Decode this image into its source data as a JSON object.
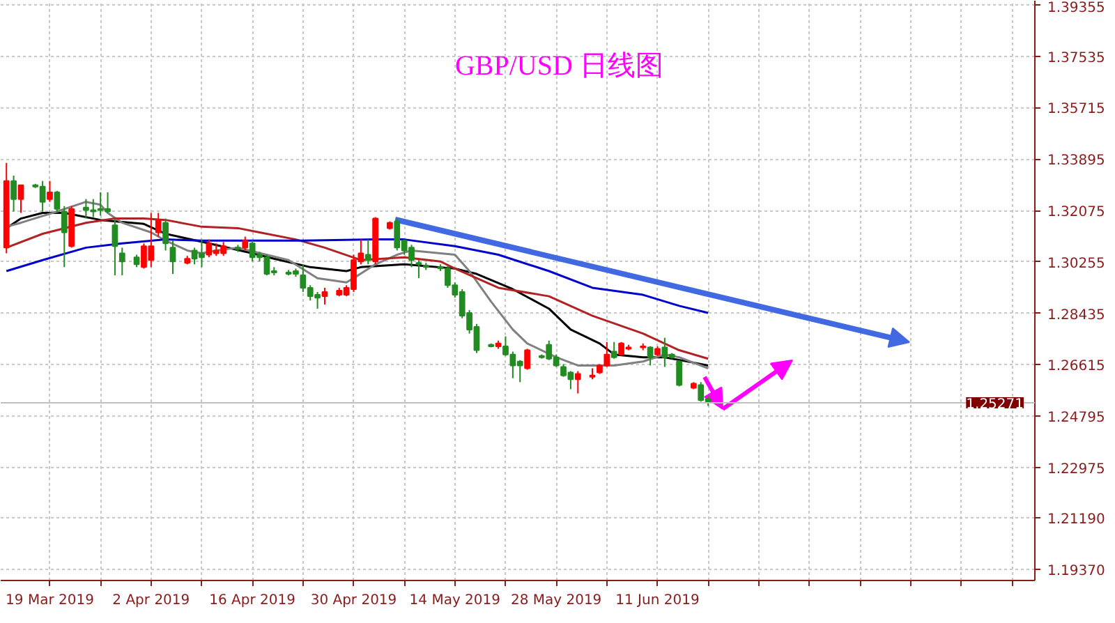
{
  "chart_data": {
    "type": "candlestick",
    "title": "GBP/USD 日线图",
    "x": [
      "2019-03-13",
      "2019-03-14",
      "2019-03-15",
      "2019-03-17",
      "2019-03-18",
      "2019-03-19",
      "2019-03-20",
      "2019-03-21",
      "2019-03-22",
      "2019-03-24",
      "2019-03-25",
      "2019-03-26",
      "2019-03-27",
      "2019-03-28",
      "2019-03-29",
      "2019-03-31",
      "2019-04-01",
      "2019-04-02",
      "2019-04-03",
      "2019-04-04",
      "2019-04-05",
      "2019-04-07",
      "2019-04-08",
      "2019-04-09",
      "2019-04-10",
      "2019-04-11",
      "2019-04-12",
      "2019-04-14",
      "2019-04-15",
      "2019-04-16",
      "2019-04-17",
      "2019-04-18",
      "2019-04-19",
      "2019-04-21",
      "2019-04-22",
      "2019-04-23",
      "2019-04-24",
      "2019-04-25",
      "2019-04-26",
      "2019-04-28",
      "2019-04-29",
      "2019-04-30",
      "2019-05-01",
      "2019-05-02",
      "2019-05-03",
      "2019-05-05",
      "2019-05-06",
      "2019-05-07",
      "2019-05-08",
      "2019-05-09",
      "2019-05-10",
      "2019-05-12",
      "2019-05-13",
      "2019-05-14",
      "2019-05-15",
      "2019-05-16",
      "2019-05-17",
      "2019-05-19",
      "2019-05-20",
      "2019-05-21",
      "2019-05-22",
      "2019-05-23",
      "2019-05-24",
      "2019-05-26",
      "2019-05-27",
      "2019-05-28",
      "2019-05-29",
      "2019-05-30",
      "2019-05-31",
      "2019-06-02",
      "2019-06-03",
      "2019-06-04",
      "2019-06-05",
      "2019-06-06",
      "2019-06-07",
      "2019-06-09",
      "2019-06-10",
      "2019-06-11",
      "2019-06-12",
      "2019-06-13",
      "2019-06-14",
      "2019-06-16",
      "2019-06-17",
      "2019-06-18"
    ],
    "ohlc": [
      [
        1.3076,
        1.3376,
        1.3056,
        1.3312
      ],
      [
        1.3312,
        1.3331,
        1.3204,
        1.3248
      ],
      [
        1.3248,
        1.3297,
        1.3199,
        1.3297
      ],
      [
        1.3297,
        1.3302,
        1.3287,
        1.3292
      ],
      [
        1.3292,
        1.3312,
        1.3204,
        1.3238
      ],
      [
        1.3248,
        1.3312,
        1.3238,
        1.3272
      ],
      [
        1.3272,
        1.3277,
        1.3199,
        1.3213
      ],
      [
        1.3204,
        1.3223,
        1.3007,
        1.313
      ],
      [
        1.3081,
        1.3223,
        1.3076,
        1.3213
      ],
      [
        1.3218,
        1.3248,
        1.3179,
        1.3209
      ],
      [
        1.3209,
        1.3248,
        1.3184,
        1.3204
      ],
      [
        1.3213,
        1.3272,
        1.3189,
        1.3209
      ],
      [
        1.3213,
        1.3272,
        1.3199,
        1.3204
      ],
      [
        1.3155,
        1.3179,
        1.2978,
        1.3081
      ],
      [
        1.3056,
        1.3076,
        1.2978,
        1.3027
      ],
      [
        1.3042,
        1.3051,
        1.3007,
        1.3017
      ],
      [
        1.3007,
        1.3091,
        1.3002,
        1.3081
      ],
      [
        1.3032,
        1.3199,
        1.3007,
        1.3081
      ],
      [
        1.313,
        1.3199,
        1.3115,
        1.3174
      ],
      [
        1.3164,
        1.3179,
        1.3066,
        1.3091
      ],
      [
        1.3076,
        1.3101,
        1.2983,
        1.3027
      ],
      [
        1.3022,
        1.3047,
        1.3017,
        1.3037
      ],
      [
        1.3066,
        1.3076,
        1.3017,
        1.3037
      ],
      [
        1.3056,
        1.3105,
        1.3007,
        1.3042
      ],
      [
        1.3051,
        1.3105,
        1.3042,
        1.3091
      ],
      [
        1.3056,
        1.3091,
        1.3047,
        1.3066
      ],
      [
        1.3056,
        1.3096,
        1.3047,
        1.3081
      ],
      [
        1.3076,
        1.3086,
        1.3061,
        1.3071
      ],
      [
        1.3076,
        1.3115,
        1.3066,
        1.3101
      ],
      [
        1.3091,
        1.3101,
        1.3027,
        1.3042
      ],
      [
        1.3051,
        1.3061,
        1.3027,
        1.3042
      ],
      [
        1.3042,
        1.3051,
        1.2978,
        1.2983
      ],
      [
        1.2993,
        1.3007,
        1.2978,
        1.2988
      ],
      [
        1.2988,
        1.2997,
        1.2978,
        1.2983
      ],
      [
        1.2993,
        1.3002,
        1.2973,
        1.2983
      ],
      [
        1.2978,
        1.3017,
        1.2919,
        1.2934
      ],
      [
        1.2934,
        1.2943,
        1.2889,
        1.2904
      ],
      [
        1.2909,
        1.2919,
        1.286,
        1.2899
      ],
      [
        1.2904,
        1.2934,
        1.2875,
        1.2919
      ],
      [
        1.2909,
        1.2934,
        1.2904,
        1.2924
      ],
      [
        1.2909,
        1.2943,
        1.2904,
        1.2934
      ],
      [
        1.2929,
        1.3051,
        1.2919,
        1.3032
      ],
      [
        1.3027,
        1.3105,
        1.3017,
        1.3056
      ],
      [
        1.3051,
        1.3105,
        1.3017,
        1.3032
      ],
      [
        1.3027,
        1.3184,
        1.3017,
        1.3179
      ],
      [
        1.3145,
        1.3169,
        1.314,
        1.3164
      ],
      [
        1.3169,
        1.3179,
        1.3066,
        1.3076
      ],
      [
        1.3101,
        1.3105,
        1.3051,
        1.3066
      ],
      [
        1.3076,
        1.3086,
        1.3007,
        1.3032
      ],
      [
        1.3022,
        1.3032,
        1.2968,
        1.3017
      ],
      [
        1.3012,
        1.3022,
        1.2997,
        1.3007
      ],
      [
        1.3007,
        1.3017,
        1.2993,
        1.3002
      ],
      [
        1.3002,
        1.3012,
        1.2934,
        1.2943
      ],
      [
        1.2943,
        1.2953,
        1.2899,
        1.2909
      ],
      [
        1.2919,
        1.2929,
        1.2826,
        1.2835
      ],
      [
        1.2845,
        1.2855,
        1.2772,
        1.2786
      ],
      [
        1.2796,
        1.2806,
        1.2703,
        1.2713
      ],
      [
        1.2732,
        1.2737,
        1.2723,
        1.2727
      ],
      [
        1.2727,
        1.2747,
        1.2718,
        1.2737
      ],
      [
        1.2727,
        1.2762,
        1.2693,
        1.2698
      ],
      [
        1.2698,
        1.2708,
        1.2614,
        1.2659
      ],
      [
        1.2673,
        1.2678,
        1.26,
        1.2659
      ],
      [
        1.2649,
        1.2718,
        1.2644,
        1.2713
      ],
      [
        1.2693,
        1.2698,
        1.2683,
        1.2688
      ],
      [
        1.2732,
        1.2747,
        1.2678,
        1.2683
      ],
      [
        1.2688,
        1.2698,
        1.2654,
        1.2659
      ],
      [
        1.2654,
        1.2664,
        1.2619,
        1.2624
      ],
      [
        1.2634,
        1.2639,
        1.2575,
        1.261
      ],
      [
        1.261,
        1.2639,
        1.256,
        1.2629
      ],
      [
        1.2619,
        1.2649,
        1.261,
        1.2624
      ],
      [
        1.2634,
        1.2664,
        1.2629,
        1.2659
      ],
      [
        1.2659,
        1.2742,
        1.2654,
        1.2698
      ],
      [
        1.2708,
        1.2742,
        1.2683,
        1.2688
      ],
      [
        1.2698,
        1.2742,
        1.2693,
        1.2737
      ],
      [
        1.2718,
        1.2732,
        1.2713,
        1.2723
      ],
      [
        1.2723,
        1.2737,
        1.2713,
        1.2727
      ],
      [
        1.2723,
        1.2727,
        1.2659,
        1.2688
      ],
      [
        1.2698,
        1.2727,
        1.2693,
        1.2718
      ],
      [
        1.2723,
        1.2757,
        1.2654,
        1.2688
      ],
      [
        1.2698,
        1.2703,
        1.2683,
        1.2688
      ],
      [
        1.2673,
        1.2678,
        1.2585,
        1.259
      ],
      [
        1.258,
        1.26,
        1.2575,
        1.2595
      ],
      [
        1.259,
        1.26,
        1.2531,
        1.2536
      ],
      [
        1.2541,
        1.2551,
        1.2516,
        1.2527
      ]
    ],
    "colors": [
      "#ff0000",
      "#228b22",
      "#ff0000",
      "#228b22",
      "#228b22",
      "#ff0000",
      "#228b22",
      "#228b22",
      "#ff0000",
      "#228b22",
      "#228b22",
      "#228b22",
      "#228b22",
      "#228b22",
      "#228b22",
      "#228b22",
      "#ff0000",
      "#ff0000",
      "#ff0000",
      "#228b22",
      "#228b22",
      "#ff0000",
      "#228b22",
      "#228b22",
      "#ff0000",
      "#ff0000",
      "#ff0000",
      "#228b22",
      "#ff0000",
      "#228b22",
      "#228b22",
      "#228b22",
      "#228b22",
      "#228b22",
      "#228b22",
      "#228b22",
      "#228b22",
      "#228b22",
      "#ff0000",
      "#ff0000",
      "#ff0000",
      "#ff0000",
      "#ff0000",
      "#228b22",
      "#ff0000",
      "#ff0000",
      "#228b22",
      "#228b22",
      "#228b22",
      "#228b22",
      "#228b22",
      "#228b22",
      "#228b22",
      "#228b22",
      "#228b22",
      "#228b22",
      "#228b22",
      "#228b22",
      "#ff0000",
      "#228b22",
      "#228b22",
      "#228b22",
      "#ff0000",
      "#228b22",
      "#228b22",
      "#228b22",
      "#228b22",
      "#228b22",
      "#ff0000",
      "#ff0000",
      "#ff0000",
      "#ff0000",
      "#228b22",
      "#ff0000",
      "#ff0000",
      "#ff0000",
      "#228b22",
      "#ff0000",
      "#228b22",
      "#228b22",
      "#228b22",
      "#ff0000",
      "#228b22",
      "#228b22"
    ],
    "series": [
      {
        "type": "line",
        "color": "#000000",
        "x": [
          "2019-03-13",
          "2019-03-15",
          "2019-03-18",
          "2019-03-21",
          "2019-03-26",
          "2019-04-01",
          "2019-04-04",
          "2019-04-10",
          "2019-04-16",
          "2019-04-19",
          "2019-04-24",
          "2019-04-29",
          "2019-05-01",
          "2019-05-07",
          "2019-05-14",
          "2019-05-17",
          "2019-05-22",
          "2019-05-27",
          "2019-05-30",
          "2019-06-03",
          "2019-06-05",
          "2019-06-09",
          "2019-06-12",
          "2019-06-16",
          "2019-06-18"
        ],
        "values": [
          1.3145,
          1.3179,
          1.3199,
          1.3199,
          1.3174,
          1.316,
          1.3125,
          1.3091,
          1.3056,
          1.3037,
          1.3007,
          1.2993,
          1.3007,
          1.3017,
          1.3002,
          1.2983,
          1.2929,
          1.286,
          1.2786,
          1.2737,
          1.2698,
          1.2688,
          1.2688,
          1.2669,
          1.2659
        ]
      },
      {
        "type": "line",
        "color": "#808080",
        "x": [
          "2019-03-13",
          "2019-03-15",
          "2019-03-20",
          "2019-03-24",
          "2019-03-26",
          "2019-03-27",
          "2019-03-29",
          "2019-04-02",
          "2019-04-04",
          "2019-04-07",
          "2019-04-09",
          "2019-04-11",
          "2019-04-14",
          "2019-04-21",
          "2019-04-25",
          "2019-04-29",
          "2019-04-30",
          "2019-05-03",
          "2019-05-06",
          "2019-05-08",
          "2019-05-10",
          "2019-05-14",
          "2019-05-16",
          "2019-05-19",
          "2019-05-22",
          "2019-05-24",
          "2019-05-28",
          "2019-05-31",
          "2019-06-05",
          "2019-06-09",
          "2019-06-12",
          "2019-06-14",
          "2019-06-18"
        ],
        "values": [
          1.315,
          1.3164,
          1.3204,
          1.3238,
          1.3228,
          1.3199,
          1.3164,
          1.313,
          1.3101,
          1.3066,
          1.3056,
          1.3066,
          1.3076,
          1.3032,
          1.2968,
          1.2953,
          1.2968,
          1.3017,
          1.3051,
          1.3066,
          1.3061,
          1.3051,
          1.2993,
          1.2885,
          1.2786,
          1.2737,
          1.2688,
          1.2659,
          1.2659,
          1.2673,
          1.2698,
          1.2688,
          1.2649
        ]
      },
      {
        "type": "line",
        "color": "#b22222",
        "x": [
          "2019-03-13",
          "2019-03-18",
          "2019-03-24",
          "2019-03-28",
          "2019-04-01",
          "2019-04-04",
          "2019-04-09",
          "2019-04-14",
          "2019-04-17",
          "2019-04-22",
          "2019-04-26",
          "2019-05-01",
          "2019-05-07",
          "2019-05-12",
          "2019-05-14",
          "2019-05-20",
          "2019-05-27",
          "2019-06-02",
          "2019-06-09",
          "2019-06-14",
          "2019-06-18"
        ],
        "values": [
          1.3076,
          1.3125,
          1.3164,
          1.3179,
          1.3179,
          1.3174,
          1.315,
          1.3145,
          1.313,
          1.3105,
          1.3076,
          1.3032,
          1.3042,
          1.3027,
          1.3002,
          1.2934,
          1.2904,
          1.2835,
          1.2772,
          1.2713,
          1.2683
        ]
      },
      {
        "type": "line",
        "color": "#0000cd",
        "x": [
          "2019-03-13",
          "2019-03-18",
          "2019-03-24",
          "2019-03-29",
          "2019-04-04",
          "2019-04-09",
          "2019-04-14",
          "2019-04-23",
          "2019-05-03",
          "2019-05-07",
          "2019-05-14",
          "2019-05-20",
          "2019-05-27",
          "2019-06-02",
          "2019-06-09",
          "2019-06-14",
          "2019-06-18"
        ],
        "values": [
          1.2993,
          1.3032,
          1.3076,
          1.3091,
          1.3105,
          1.3101,
          1.3101,
          1.3101,
          1.3105,
          1.3105,
          1.3081,
          1.3051,
          1.2993,
          1.2934,
          1.2909,
          1.287,
          1.2845
        ]
      }
    ],
    "ref_lines": [
      {
        "axis": "y",
        "value": 1.25271,
        "label": "1.25271",
        "color": "#c0c0c0"
      }
    ],
    "xlim": [
      "2019-03-12T05:00",
      "2019-08-02T04:00"
    ],
    "xticks": [
      {
        "value": "2019-03-19",
        "label": "19 Mar 2019"
      },
      {
        "value": "2019-03-26",
        "label": null
      },
      {
        "value": "2019-04-02",
        "label": "2 Apr 2019"
      },
      {
        "value": "2019-04-09",
        "label": null
      },
      {
        "value": "2019-04-16",
        "label": "16 Apr 2019"
      },
      {
        "value": "2019-04-23",
        "label": null
      },
      {
        "value": "2019-04-30",
        "label": "30 Apr 2019"
      },
      {
        "value": "2019-05-07",
        "label": null
      },
      {
        "value": "2019-05-14",
        "label": "14 May 2019"
      },
      {
        "value": "2019-05-21",
        "label": null
      },
      {
        "value": "2019-05-28",
        "label": "28 May 2019"
      },
      {
        "value": "2019-06-04",
        "label": null
      },
      {
        "value": "2019-06-11",
        "label": "11 Jun 2019"
      },
      {
        "value": "2019-06-18",
        "label": null
      },
      {
        "value": "2019-06-25",
        "label": null
      },
      {
        "value": "2019-07-02",
        "label": null
      },
      {
        "value": "2019-07-09",
        "label": null
      },
      {
        "value": "2019-07-16",
        "label": null
      },
      {
        "value": "2019-07-23",
        "label": null
      },
      {
        "value": "2019-07-30",
        "label": null
      }
    ],
    "ylim": [
      1.1898,
      1.395
    ],
    "yticks": [
      {
        "value": 1.1937,
        "label": "1.19370"
      },
      {
        "value": 1.2119,
        "label": "1.21190"
      },
      {
        "value": 1.22975,
        "label": "1.22975"
      },
      {
        "value": 1.24795,
        "label": "1.24795"
      },
      {
        "value": 1.26615,
        "label": "1.26615"
      },
      {
        "value": 1.28435,
        "label": "1.28435"
      },
      {
        "value": 1.30255,
        "label": "1.30255"
      },
      {
        "value": 1.32075,
        "label": "1.32075"
      },
      {
        "value": 1.33895,
        "label": "1.33895"
      },
      {
        "value": 1.35715,
        "label": "1.35715"
      },
      {
        "value": 1.37535,
        "label": "1.37535"
      },
      {
        "value": 1.39355,
        "label": "1.39355"
      }
    ],
    "grid": true
  }
}
